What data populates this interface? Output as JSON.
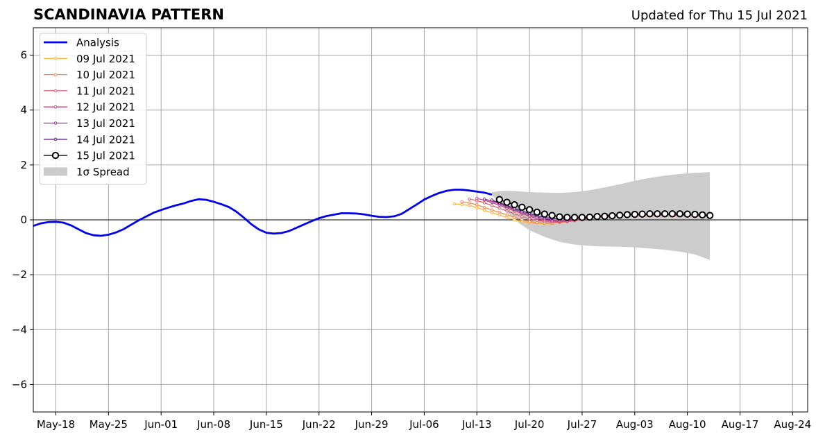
{
  "chart_data": {
    "type": "line",
    "title": "SCANDINAVIA PATTERN",
    "subtitle": "Updated for Thu 15 Jul 2021",
    "xlabel": "",
    "ylabel": "",
    "x_range": [
      "2021-05-15",
      "2021-08-26"
    ],
    "ylim": [
      -7,
      7
    ],
    "x_ticks": [
      {
        "date": "2021-05-18",
        "label": "May-18"
      },
      {
        "date": "2021-05-25",
        "label": "May-25"
      },
      {
        "date": "2021-06-01",
        "label": "Jun-01"
      },
      {
        "date": "2021-06-08",
        "label": "Jun-08"
      },
      {
        "date": "2021-06-15",
        "label": "Jun-15"
      },
      {
        "date": "2021-06-22",
        "label": "Jun-22"
      },
      {
        "date": "2021-06-29",
        "label": "Jun-29"
      },
      {
        "date": "2021-07-06",
        "label": "Jul-06"
      },
      {
        "date": "2021-07-13",
        "label": "Jul-13"
      },
      {
        "date": "2021-07-20",
        "label": "Jul-20"
      },
      {
        "date": "2021-07-27",
        "label": "Jul-27"
      },
      {
        "date": "2021-08-03",
        "label": "Aug-03"
      },
      {
        "date": "2021-08-10",
        "label": "Aug-10"
      },
      {
        "date": "2021-08-17",
        "label": "Aug-17"
      },
      {
        "date": "2021-08-24",
        "label": "Aug-24"
      }
    ],
    "y_ticks": [
      {
        "value": 6,
        "label": "6"
      },
      {
        "value": 4,
        "label": "4"
      },
      {
        "value": 2,
        "label": "2"
      },
      {
        "value": 0,
        "label": "0"
      },
      {
        "value": -2,
        "label": "−2"
      },
      {
        "value": -4,
        "label": "−4"
      },
      {
        "value": -6,
        "label": "−6"
      }
    ],
    "grid": true,
    "legend_position": "top-left",
    "analysis": {
      "name": "Analysis",
      "color": "#0000ee",
      "x": [
        "2021-05-15",
        "2021-05-16",
        "2021-05-17",
        "2021-05-18",
        "2021-05-19",
        "2021-05-20",
        "2021-05-21",
        "2021-05-22",
        "2021-05-23",
        "2021-05-24",
        "2021-05-25",
        "2021-05-26",
        "2021-05-27",
        "2021-05-28",
        "2021-05-29",
        "2021-05-30",
        "2021-05-31",
        "2021-06-01",
        "2021-06-02",
        "2021-06-03",
        "2021-06-04",
        "2021-06-05",
        "2021-06-06",
        "2021-06-07",
        "2021-06-08",
        "2021-06-09",
        "2021-06-10",
        "2021-06-11",
        "2021-06-12",
        "2021-06-13",
        "2021-06-14",
        "2021-06-15",
        "2021-06-16",
        "2021-06-17",
        "2021-06-18",
        "2021-06-19",
        "2021-06-20",
        "2021-06-21",
        "2021-06-22",
        "2021-06-23",
        "2021-06-24",
        "2021-06-25",
        "2021-06-26",
        "2021-06-27",
        "2021-06-28",
        "2021-06-29",
        "2021-06-30",
        "2021-07-01",
        "2021-07-02",
        "2021-07-03",
        "2021-07-04",
        "2021-07-05",
        "2021-07-06",
        "2021-07-07",
        "2021-07-08",
        "2021-07-09",
        "2021-07-10",
        "2021-07-11",
        "2021-07-12",
        "2021-07-13",
        "2021-07-14",
        "2021-07-15"
      ],
      "y": [
        -0.22,
        -0.13,
        -0.08,
        -0.07,
        -0.1,
        -0.2,
        -0.34,
        -0.48,
        -0.56,
        -0.58,
        -0.54,
        -0.46,
        -0.34,
        -0.18,
        -0.02,
        0.12,
        0.26,
        0.36,
        0.45,
        0.53,
        0.6,
        0.69,
        0.75,
        0.73,
        0.66,
        0.57,
        0.47,
        0.3,
        0.08,
        -0.16,
        -0.35,
        -0.47,
        -0.5,
        -0.48,
        -0.41,
        -0.29,
        -0.17,
        -0.05,
        0.06,
        0.14,
        0.19,
        0.24,
        0.24,
        0.23,
        0.2,
        0.15,
        0.11,
        0.1,
        0.13,
        0.22,
        0.39,
        0.56,
        0.74,
        0.87,
        0.98,
        1.06,
        1.1,
        1.1,
        1.07,
        1.03,
        0.99,
        0.92
      ]
    },
    "spread": {
      "name": "1σ Spread",
      "color": "#cccccc",
      "x": [
        "2021-07-15",
        "2021-07-16",
        "2021-07-17",
        "2021-07-18",
        "2021-07-19",
        "2021-07-20",
        "2021-07-22",
        "2021-07-24",
        "2021-07-26",
        "2021-07-28",
        "2021-07-30",
        "2021-08-01",
        "2021-08-03",
        "2021-08-05",
        "2021-08-07",
        "2021-08-09",
        "2021-08-11",
        "2021-08-13"
      ],
      "upper": [
        1.0,
        1.05,
        1.06,
        1.05,
        1.03,
        1.01,
        0.99,
        0.98,
        1.01,
        1.08,
        1.18,
        1.3,
        1.42,
        1.53,
        1.61,
        1.67,
        1.71,
        1.74
      ],
      "lower": [
        0.9,
        0.62,
        0.28,
        0.02,
        -0.2,
        -0.38,
        -0.62,
        -0.8,
        -0.9,
        -0.95,
        -0.97,
        -0.98,
        -1.0,
        -1.04,
        -1.09,
        -1.16,
        -1.26,
        -1.46
      ]
    },
    "series": [
      {
        "name": "09 Jul 2021",
        "color": "#fbb43a",
        "x": [
          "2021-07-10",
          "2021-07-11",
          "2021-07-12",
          "2021-07-13",
          "2021-07-14",
          "2021-07-15",
          "2021-07-16",
          "2021-07-17",
          "2021-07-18",
          "2021-07-19",
          "2021-07-20",
          "2021-07-21",
          "2021-07-22",
          "2021-07-23",
          "2021-07-24",
          "2021-07-25",
          "2021-07-26",
          "2021-07-27",
          "2021-07-28",
          "2021-07-29",
          "2021-07-30",
          "2021-07-31",
          "2021-08-01",
          "2021-08-02",
          "2021-08-03",
          "2021-08-04",
          "2021-08-05",
          "2021-08-06",
          "2021-08-07",
          "2021-08-08",
          "2021-08-09",
          "2021-08-10",
          "2021-08-11",
          "2021-08-12",
          "2021-08-13"
        ],
        "y": [
          0.58,
          0.56,
          0.52,
          0.45,
          0.35,
          0.26,
          0.17,
          0.09,
          0.0,
          -0.06,
          -0.1,
          -0.13,
          -0.14,
          -0.13,
          -0.1,
          -0.06,
          -0.02,
          0.02,
          0.06,
          0.1,
          0.12,
          0.14,
          0.15,
          0.16,
          0.16,
          0.16,
          0.16,
          0.16,
          0.16,
          0.16,
          0.15,
          0.15,
          0.14,
          0.14,
          0.13
        ]
      },
      {
        "name": "10 Jul 2021",
        "color": "#f08a4a",
        "x": [
          "2021-07-11",
          "2021-07-12",
          "2021-07-13",
          "2021-07-14",
          "2021-07-15",
          "2021-07-16",
          "2021-07-17",
          "2021-07-18",
          "2021-07-19",
          "2021-07-20",
          "2021-07-21",
          "2021-07-22",
          "2021-07-23",
          "2021-07-24",
          "2021-07-25",
          "2021-07-26",
          "2021-07-27",
          "2021-07-28",
          "2021-07-29",
          "2021-07-30",
          "2021-07-31",
          "2021-08-01",
          "2021-08-02",
          "2021-08-03",
          "2021-08-04",
          "2021-08-05",
          "2021-08-06",
          "2021-08-07",
          "2021-08-08",
          "2021-08-09",
          "2021-08-10",
          "2021-08-11",
          "2021-08-12",
          "2021-08-13"
        ],
        "y": [
          0.66,
          0.62,
          0.55,
          0.45,
          0.36,
          0.27,
          0.18,
          0.09,
          0.0,
          -0.06,
          -0.1,
          -0.12,
          -0.12,
          -0.1,
          -0.07,
          -0.03,
          0.01,
          0.05,
          0.09,
          0.12,
          0.14,
          0.15,
          0.16,
          0.17,
          0.17,
          0.17,
          0.17,
          0.17,
          0.17,
          0.16,
          0.16,
          0.15,
          0.15,
          0.14
        ]
      },
      {
        "name": "11 Jul 2021",
        "color": "#e05c6c",
        "x": [
          "2021-07-12",
          "2021-07-13",
          "2021-07-14",
          "2021-07-15",
          "2021-07-16",
          "2021-07-17",
          "2021-07-18",
          "2021-07-19",
          "2021-07-20",
          "2021-07-21",
          "2021-07-22",
          "2021-07-23",
          "2021-07-24",
          "2021-07-25",
          "2021-07-26",
          "2021-07-27",
          "2021-07-28",
          "2021-07-29",
          "2021-07-30",
          "2021-07-31",
          "2021-08-01",
          "2021-08-02",
          "2021-08-03",
          "2021-08-04",
          "2021-08-05",
          "2021-08-06",
          "2021-08-07",
          "2021-08-08",
          "2021-08-09",
          "2021-08-10",
          "2021-08-11",
          "2021-08-12",
          "2021-08-13"
        ],
        "y": [
          0.76,
          0.7,
          0.62,
          0.52,
          0.42,
          0.32,
          0.22,
          0.12,
          0.04,
          -0.02,
          -0.06,
          -0.08,
          -0.08,
          -0.06,
          -0.03,
          0.01,
          0.05,
          0.09,
          0.12,
          0.14,
          0.16,
          0.17,
          0.18,
          0.18,
          0.18,
          0.18,
          0.18,
          0.18,
          0.17,
          0.17,
          0.16,
          0.16,
          0.15
        ]
      },
      {
        "name": "12 Jul 2021",
        "color": "#c2457f",
        "x": [
          "2021-07-13",
          "2021-07-14",
          "2021-07-15",
          "2021-07-16",
          "2021-07-17",
          "2021-07-18",
          "2021-07-19",
          "2021-07-20",
          "2021-07-21",
          "2021-07-22",
          "2021-07-23",
          "2021-07-24",
          "2021-07-25",
          "2021-07-26",
          "2021-07-27",
          "2021-07-28",
          "2021-07-29",
          "2021-07-30",
          "2021-07-31",
          "2021-08-01",
          "2021-08-02",
          "2021-08-03",
          "2021-08-04",
          "2021-08-05",
          "2021-08-06",
          "2021-08-07",
          "2021-08-08",
          "2021-08-09",
          "2021-08-10",
          "2021-08-11",
          "2021-08-12",
          "2021-08-13"
        ],
        "y": [
          0.78,
          0.72,
          0.63,
          0.53,
          0.43,
          0.33,
          0.23,
          0.13,
          0.05,
          -0.01,
          -0.04,
          -0.05,
          -0.04,
          -0.01,
          0.03,
          0.07,
          0.1,
          0.13,
          0.15,
          0.17,
          0.18,
          0.19,
          0.19,
          0.19,
          0.19,
          0.19,
          0.18,
          0.18,
          0.17,
          0.17,
          0.16,
          0.16
        ]
      },
      {
        "name": "13 Jul 2021",
        "color": "#9c2f8f",
        "x": [
          "2021-07-14",
          "2021-07-15",
          "2021-07-16",
          "2021-07-17",
          "2021-07-18",
          "2021-07-19",
          "2021-07-20",
          "2021-07-21",
          "2021-07-22",
          "2021-07-23",
          "2021-07-24",
          "2021-07-25",
          "2021-07-26",
          "2021-07-27",
          "2021-07-28",
          "2021-07-29",
          "2021-07-30",
          "2021-07-31",
          "2021-08-01",
          "2021-08-02",
          "2021-08-03",
          "2021-08-04",
          "2021-08-05",
          "2021-08-06",
          "2021-08-07",
          "2021-08-08",
          "2021-08-09",
          "2021-08-10",
          "2021-08-11",
          "2021-08-12",
          "2021-08-13"
        ],
        "y": [
          0.76,
          0.68,
          0.58,
          0.48,
          0.38,
          0.28,
          0.18,
          0.1,
          0.04,
          0.0,
          -0.01,
          0.0,
          0.03,
          0.06,
          0.09,
          0.12,
          0.15,
          0.17,
          0.18,
          0.19,
          0.2,
          0.2,
          0.2,
          0.2,
          0.2,
          0.19,
          0.19,
          0.18,
          0.18,
          0.17,
          0.17
        ]
      },
      {
        "name": "14 Jul 2021",
        "color": "#5e1a86",
        "x": [
          "2021-07-15",
          "2021-07-16",
          "2021-07-17",
          "2021-07-18",
          "2021-07-19",
          "2021-07-20",
          "2021-07-21",
          "2021-07-22",
          "2021-07-23",
          "2021-07-24",
          "2021-07-25",
          "2021-07-26",
          "2021-07-27",
          "2021-07-28",
          "2021-07-29",
          "2021-07-30",
          "2021-07-31",
          "2021-08-01",
          "2021-08-02",
          "2021-08-03",
          "2021-08-04",
          "2021-08-05",
          "2021-08-06",
          "2021-08-07",
          "2021-08-08",
          "2021-08-09",
          "2021-08-10",
          "2021-08-11",
          "2021-08-12",
          "2021-08-13"
        ],
        "y": [
          0.72,
          0.62,
          0.52,
          0.42,
          0.32,
          0.23,
          0.15,
          0.09,
          0.05,
          0.04,
          0.05,
          0.07,
          0.09,
          0.12,
          0.14,
          0.16,
          0.18,
          0.19,
          0.2,
          0.21,
          0.21,
          0.21,
          0.21,
          0.2,
          0.2,
          0.19,
          0.19,
          0.18,
          0.17,
          0.16
        ]
      },
      {
        "name": "15 Jul 2021",
        "color": "#000000",
        "marker": "open-circle",
        "x": [
          "2021-07-16",
          "2021-07-17",
          "2021-07-18",
          "2021-07-19",
          "2021-07-20",
          "2021-07-21",
          "2021-07-22",
          "2021-07-23",
          "2021-07-24",
          "2021-07-25",
          "2021-07-26",
          "2021-07-27",
          "2021-07-28",
          "2021-07-29",
          "2021-07-30",
          "2021-07-31",
          "2021-08-01",
          "2021-08-02",
          "2021-08-03",
          "2021-08-04",
          "2021-08-05",
          "2021-08-06",
          "2021-08-07",
          "2021-08-08",
          "2021-08-09",
          "2021-08-10",
          "2021-08-11",
          "2021-08-12",
          "2021-08-13"
        ],
        "y": [
          0.74,
          0.64,
          0.55,
          0.46,
          0.37,
          0.28,
          0.21,
          0.16,
          0.11,
          0.09,
          0.09,
          0.09,
          0.1,
          0.12,
          0.13,
          0.15,
          0.17,
          0.19,
          0.2,
          0.21,
          0.22,
          0.22,
          0.22,
          0.22,
          0.22,
          0.21,
          0.2,
          0.18,
          0.16
        ]
      }
    ]
  }
}
